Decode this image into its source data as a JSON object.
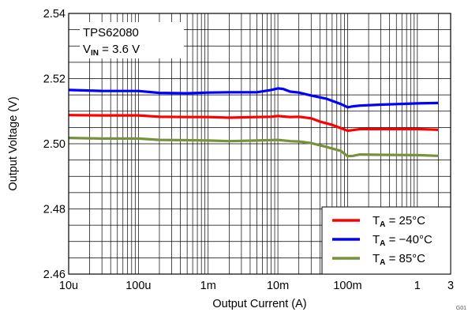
{
  "chart_data": {
    "type": "line",
    "xlabel": "Output Current (A)",
    "ylabel": "Output Voltage (V)",
    "x_scale": "log",
    "xlim": [
      1e-05,
      3
    ],
    "ylim": [
      2.46,
      2.54
    ],
    "y_ticks": [
      2.46,
      2.48,
      2.5,
      2.52,
      2.54
    ],
    "x_ticks": [
      {
        "value": 1e-05,
        "label": "10u"
      },
      {
        "value": 0.0001,
        "label": "100u"
      },
      {
        "value": 0.001,
        "label": "1m"
      },
      {
        "value": 0.01,
        "label": "10m"
      },
      {
        "value": 0.1,
        "label": "100m"
      },
      {
        "value": 1,
        "label": "1"
      },
      {
        "value": 3,
        "label": "3"
      }
    ],
    "grid": true,
    "legend_position": "bottom-right",
    "annotation": {
      "line1": "TPS62080",
      "line2_main": "V",
      "line2_sub": "IN",
      "line2_rest": " = 3.6 V"
    },
    "figure_id": "G01",
    "series": [
      {
        "legend_main": "T",
        "legend_sub": "A",
        "legend_rest": " = 25°C",
        "color": "#ff0000",
        "points": [
          [
            1e-05,
            2.5088
          ],
          [
            3e-05,
            2.5087
          ],
          [
            0.0001,
            2.5087
          ],
          [
            0.0002,
            2.5083
          ],
          [
            0.0005,
            2.5082
          ],
          [
            0.001,
            2.5082
          ],
          [
            0.002,
            2.508
          ],
          [
            0.003,
            2.5081
          ],
          [
            0.005,
            2.5082
          ],
          [
            0.008,
            2.5083
          ],
          [
            0.01,
            2.5085
          ],
          [
            0.015,
            2.5082
          ],
          [
            0.02,
            2.5083
          ],
          [
            0.03,
            2.5078
          ],
          [
            0.04,
            2.5068
          ],
          [
            0.06,
            2.5058
          ],
          [
            0.08,
            2.5048
          ],
          [
            0.1,
            2.504
          ],
          [
            0.12,
            2.5042
          ],
          [
            0.15,
            2.5045
          ],
          [
            0.3,
            2.5045
          ],
          [
            1,
            2.5045
          ],
          [
            2,
            2.5043
          ]
        ]
      },
      {
        "legend_main": "T",
        "legend_sub": "A",
        "legend_rest": " = −40°C",
        "color": "#0000ff",
        "points": [
          [
            1e-05,
            2.5165
          ],
          [
            3e-05,
            2.5162
          ],
          [
            0.0001,
            2.5162
          ],
          [
            0.0002,
            2.5156
          ],
          [
            0.0005,
            2.5155
          ],
          [
            0.001,
            2.5157
          ],
          [
            0.002,
            2.5158
          ],
          [
            0.005,
            2.5158
          ],
          [
            0.008,
            2.5165
          ],
          [
            0.01,
            2.517
          ],
          [
            0.012,
            2.5168
          ],
          [
            0.015,
            2.516
          ],
          [
            0.02,
            2.5157
          ],
          [
            0.03,
            2.5148
          ],
          [
            0.05,
            2.5138
          ],
          [
            0.08,
            2.5122
          ],
          [
            0.1,
            2.5112
          ],
          [
            0.12,
            2.5115
          ],
          [
            0.15,
            2.5117
          ],
          [
            0.3,
            2.512
          ],
          [
            1,
            2.5124
          ],
          [
            2,
            2.5125
          ]
        ]
      },
      {
        "legend_main": "T",
        "legend_sub": "A",
        "legend_rest": " = 85°C",
        "color": "#76923c",
        "points": [
          [
            1e-05,
            2.5018
          ],
          [
            3e-05,
            2.5016
          ],
          [
            0.0001,
            2.5016
          ],
          [
            0.0002,
            2.5012
          ],
          [
            0.0005,
            2.5011
          ],
          [
            0.001,
            2.501
          ],
          [
            0.002,
            2.5008
          ],
          [
            0.005,
            2.501
          ],
          [
            0.01,
            2.5012
          ],
          [
            0.015,
            2.5008
          ],
          [
            0.02,
            2.5007
          ],
          [
            0.03,
            2.5002
          ],
          [
            0.05,
            2.499
          ],
          [
            0.08,
            2.4978
          ],
          [
            0.1,
            2.4962
          ],
          [
            0.12,
            2.4963
          ],
          [
            0.15,
            2.4967
          ],
          [
            0.3,
            2.4966
          ],
          [
            1,
            2.4965
          ],
          [
            2,
            2.4963
          ]
        ]
      }
    ]
  }
}
